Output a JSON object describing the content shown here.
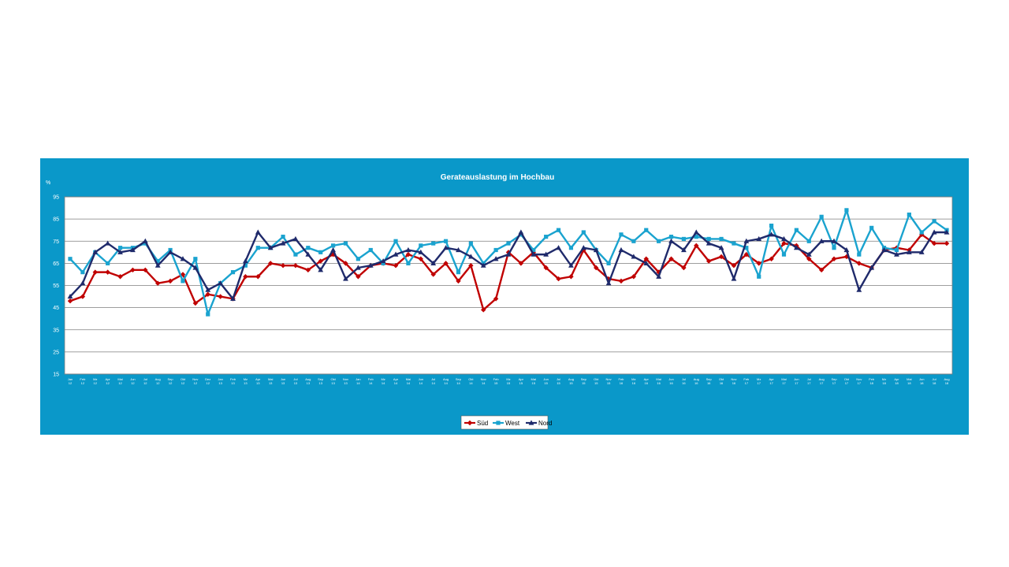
{
  "chart_data": {
    "type": "line",
    "title": "Gerateauslastung im Hochbau",
    "ylabel": "%",
    "xlabel": "",
    "ylim": [
      15,
      95
    ],
    "yticks": [
      15,
      25,
      35,
      45,
      55,
      65,
      75,
      85,
      95
    ],
    "grid": true,
    "legend_position": "bottom-center",
    "x": [
      "Jan 12",
      "Feb 12",
      "Mz 12",
      "Apr 12",
      "Mai 12",
      "Jun 12",
      "Jul 12",
      "Aug 12",
      "Sep 12",
      "Okt 12",
      "Nov 12",
      "Dez 12",
      "Jan 13",
      "Feb 13",
      "Mz 13",
      "Apr 13",
      "Mai 13",
      "Jun 13",
      "Jul 13",
      "Aug 13",
      "Sep 13",
      "Okt 13",
      "Nov 13",
      "Jan 14",
      "Feb 14",
      "Mz 14",
      "Apr 14",
      "Mai 14",
      "Jun 14",
      "Jul 14",
      "Aug 14",
      "Sep 14",
      "Okt 14",
      "Nov 14",
      "Feb 15",
      "Mz 15",
      "Apr 15",
      "Mai 15",
      "Jun 15",
      "Jul 15",
      "Aug 15",
      "Sep 15",
      "Okt 15",
      "Nov 15",
      "Feb 16",
      "Mz 16",
      "Apr 16",
      "Mai 16",
      "Jun 16",
      "Jul 16",
      "Aug 16",
      "Sep 16",
      "Okt 16",
      "Nov 16",
      "Feb 17",
      "Mz 17",
      "Apr 17",
      "Mai 17",
      "Jun 17",
      "Jul 17",
      "Aug 17",
      "Sep 17",
      "Okt 17",
      "Nov 17",
      "Feb 18",
      "Mz 18",
      "Apr 18",
      "Mai 18",
      "Jun 18",
      "Jul 18",
      "Aug 18"
    ],
    "series": [
      {
        "name": "Süd",
        "color": "#c00000",
        "marker": "diamond",
        "values": [
          48,
          50,
          61,
          61,
          59,
          62,
          62,
          56,
          57,
          60,
          47,
          51,
          50,
          49,
          59,
          59,
          65,
          64,
          64,
          62,
          66,
          69,
          65,
          59,
          64,
          65,
          64,
          69,
          67,
          60,
          65,
          57,
          64,
          44,
          49,
          70,
          65,
          70,
          63,
          58,
          59,
          71,
          63,
          58,
          57,
          59,
          67,
          61,
          67,
          63,
          73,
          66,
          68,
          64,
          69,
          65,
          67,
          74,
          73,
          67,
          62,
          67,
          68,
          65,
          63,
          71,
          72,
          71,
          78,
          74,
          74
        ]
      },
      {
        "name": "West",
        "color": "#1aa3cf",
        "marker": "square",
        "values": [
          67,
          61,
          70,
          65,
          72,
          72,
          74,
          66,
          71,
          57,
          67,
          42,
          56,
          61,
          64,
          72,
          72,
          77,
          69,
          72,
          70,
          73,
          74,
          67,
          71,
          65,
          75,
          65,
          73,
          74,
          75,
          61,
          74,
          65,
          71,
          74,
          78,
          71,
          77,
          80,
          72,
          79,
          71,
          65,
          78,
          75,
          80,
          75,
          77,
          76,
          77,
          76,
          76,
          74,
          72,
          59,
          82,
          69,
          80,
          75,
          86,
          72,
          89,
          69,
          81,
          72,
          71,
          87,
          79,
          84,
          80
        ]
      },
      {
        "name": "Nord",
        "color": "#1f2a6b",
        "marker": "triangle",
        "values": [
          50,
          56,
          70,
          74,
          70,
          71,
          75,
          64,
          70,
          67,
          63,
          53,
          56,
          49,
          66,
          79,
          72,
          74,
          76,
          69,
          62,
          71,
          58,
          63,
          64,
          66,
          69,
          71,
          70,
          65,
          72,
          71,
          68,
          64,
          67,
          69,
          79,
          69,
          69,
          72,
          64,
          72,
          71,
          56,
          71,
          68,
          65,
          59,
          75,
          71,
          79,
          74,
          72,
          58,
          75,
          76,
          78,
          76,
          72,
          69,
          75,
          75,
          71,
          53,
          63,
          71,
          69,
          70,
          70,
          79,
          79
        ]
      }
    ]
  }
}
